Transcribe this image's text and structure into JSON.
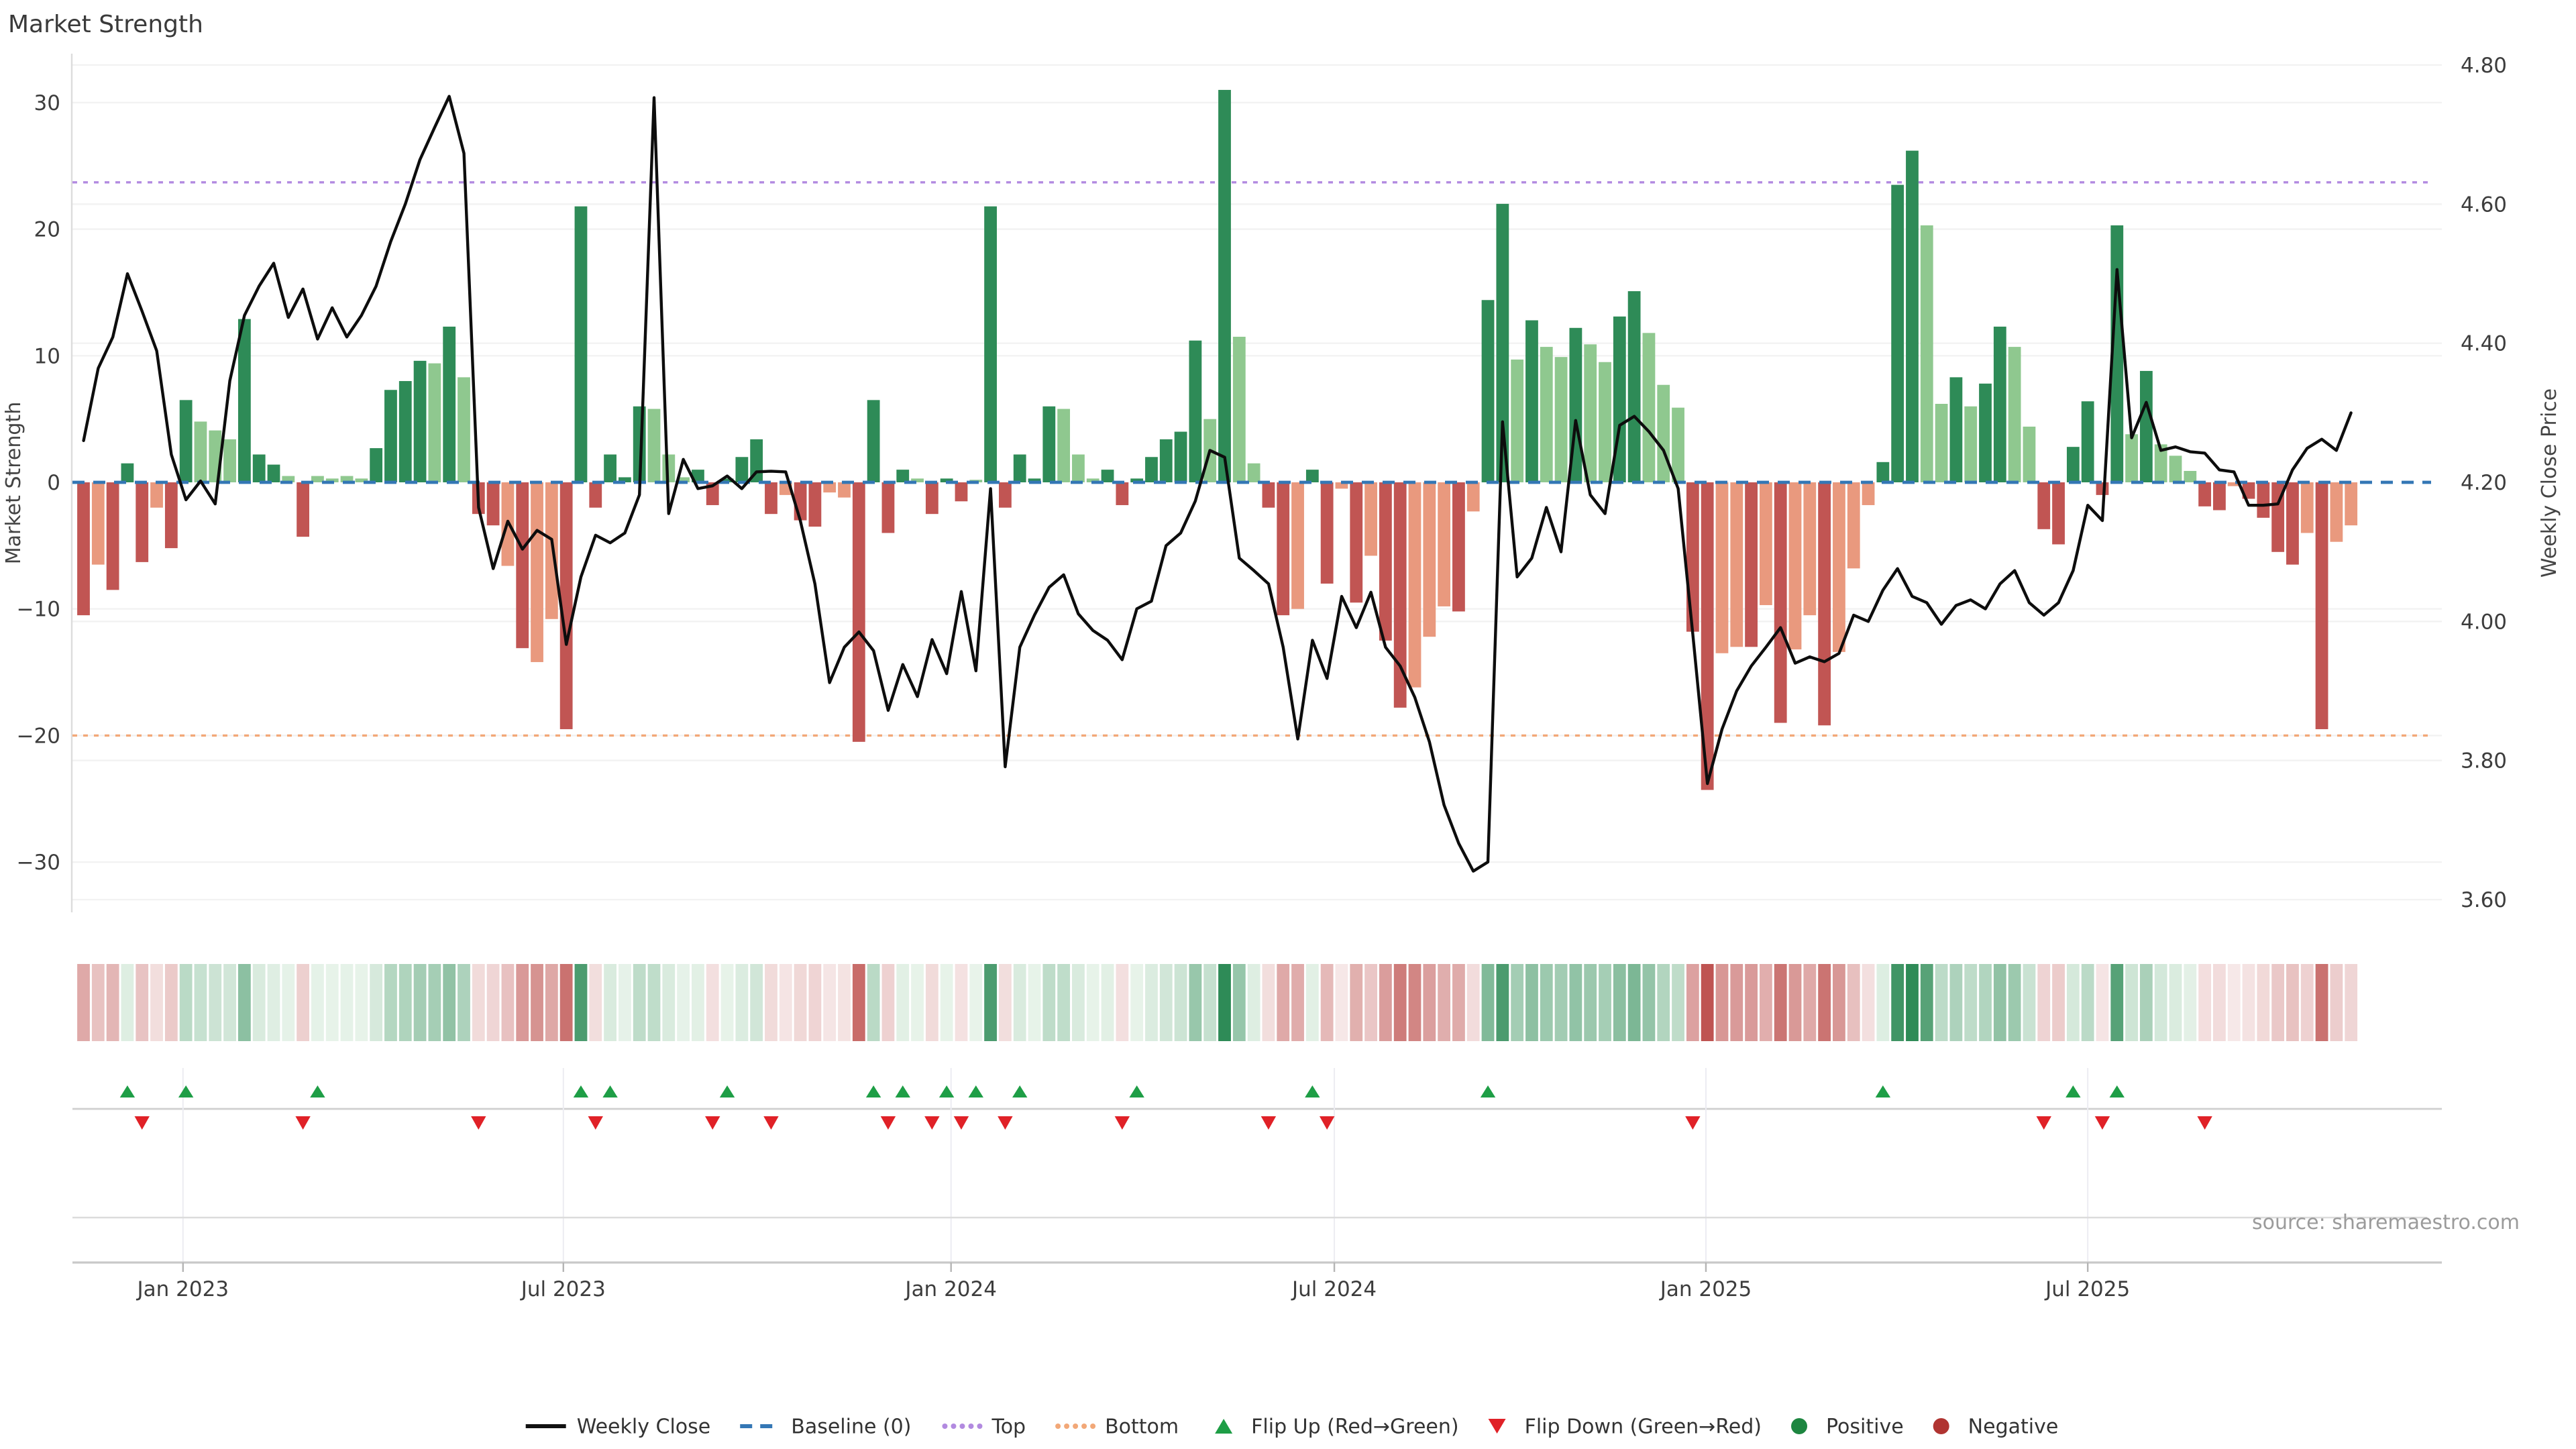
{
  "title": "Market Strength",
  "source": "source: sharemaestro.com",
  "left_axis": {
    "label": "Market Strength",
    "ticks": [
      "30",
      "20",
      "10",
      "0",
      "−10",
      "−20",
      "−30"
    ],
    "tick_values": [
      30,
      20,
      10,
      0,
      -10,
      -20,
      -30
    ]
  },
  "right_axis": {
    "label": "Weekly Close Price",
    "ticks": [
      "4.80",
      "4.60",
      "4.40",
      "4.20",
      "4.00",
      "3.80",
      "3.60"
    ],
    "tick_values": [
      4.8,
      4.6,
      4.4,
      4.2,
      4.0,
      3.8,
      3.6
    ]
  },
  "x_axis": {
    "ticks": [
      {
        "label": "Jan 2023",
        "index": 6.8
      },
      {
        "label": "Jul 2023",
        "index": 32.8
      },
      {
        "label": "Jan 2024",
        "index": 59.3
      },
      {
        "label": "Jul 2024",
        "index": 85.5
      },
      {
        "label": "Jan 2025",
        "index": 110.9
      },
      {
        "label": "Jul 2025",
        "index": 137.0
      }
    ]
  },
  "reference_lines": {
    "baseline": {
      "label": "Baseline (0)",
      "value": 0,
      "color": "#3477b5"
    },
    "top": {
      "label": "Top",
      "value": 23.7,
      "color": "#b28ae0"
    },
    "bottom": {
      "label": "Bottom",
      "value": -20,
      "color": "#f2a878"
    }
  },
  "colors": {
    "bar_dark_green": "#2e8b57",
    "bar_light_green": "#8fc88f",
    "bar_salmon": "#e9997e",
    "bar_dark_red": "#c15553",
    "line": "#0d0d0d",
    "flip_up": "#1e9e46",
    "flip_down": "#e02127",
    "positive_dot": "#1d8640",
    "negative_dot": "#b03431",
    "grid": "#f2f2f2",
    "spine": "#dcdcdc",
    "separator": "#cfcfcf",
    "axis_line": "#c9c9c9"
  },
  "legend": [
    {
      "icon": "line",
      "color": "#111111",
      "label": "Weekly Close"
    },
    {
      "icon": "dash",
      "color": "#3477b5",
      "label": "Baseline (0)"
    },
    {
      "icon": "dots",
      "color": "#b28ae0",
      "label": "Top"
    },
    {
      "icon": "dots",
      "color": "#f2a878",
      "label": "Bottom"
    },
    {
      "icon": "tri-up",
      "color": "#1e9e46",
      "label": "Flip Up (Red→Green)"
    },
    {
      "icon": "tri-down",
      "color": "#e02127",
      "label": "Flip Down (Green→Red)"
    },
    {
      "icon": "dot",
      "color": "#1d8640",
      "label": "Positive"
    },
    {
      "icon": "dot",
      "color": "#b03431",
      "label": "Negative"
    }
  ],
  "chart_data": {
    "type": "bar+line",
    "title": "Market Strength",
    "x_range_weeks": 156,
    "ylim_left": [
      -33.5,
      33.5
    ],
    "ylim_right": [
      3.565,
      4.835
    ],
    "grid": true,
    "legend_position": "bottom-center",
    "bars": {
      "name": "Market Strength",
      "axis": "left",
      "values": [
        -10.5,
        -6.5,
        -8.5,
        1.5,
        -6.3,
        -2,
        -5.2,
        6.5,
        4.8,
        4.1,
        3.4,
        12.9,
        2.2,
        1.4,
        0.5,
        -4.3,
        0.5,
        0.3,
        0.5,
        0.3,
        2.7,
        7.3,
        8,
        9.6,
        9.4,
        12.3,
        8.3,
        -2.5,
        -3.4,
        -6.6,
        -13.1,
        -14.2,
        -10.8,
        -19.5,
        21.8,
        -2,
        2.2,
        0.4,
        6,
        5.8,
        2.2,
        0.4,
        1,
        -1.8,
        0.3,
        2,
        3.4,
        -2.5,
        -1,
        -3,
        -3.5,
        -0.8,
        -1.2,
        -20.5,
        6.5,
        -4,
        1,
        0.3,
        -2.5,
        0.3,
        -1.5,
        0.2,
        21.8,
        -2,
        2.2,
        0.3,
        6,
        5.8,
        2.2,
        0.3,
        1,
        -1.8,
        0.3,
        2,
        3.4,
        4,
        11.2,
        5,
        31,
        11.5,
        1.5,
        -2,
        -10.5,
        -10,
        1,
        -8,
        -0.5,
        -9.5,
        -5.8,
        -12.5,
        -17.8,
        -16.2,
        -12.2,
        -9.8,
        -10.2,
        -2.3,
        14.4,
        22,
        9.7,
        12.8,
        10.7,
        9.9,
        12.2,
        10.9,
        9.5,
        13.1,
        15.1,
        11.8,
        7.7,
        5.9,
        -11.8,
        -24.3,
        -13.5,
        -13,
        -13,
        -9.7,
        -19,
        -13.2,
        -10.5,
        -19.2,
        -13.4,
        -6.8,
        -1.8,
        1.6,
        23.5,
        26.2,
        20.3,
        6.2,
        8.3,
        6,
        7.8,
        12.3,
        10.7,
        4.4,
        -3.7,
        -4.9,
        2.8,
        6.4,
        -1,
        20.3,
        3.8,
        8.8,
        3,
        2.1,
        0.9,
        -1.9,
        -2.2,
        -0.3,
        -1.3,
        -2.8,
        -5.5,
        -6.5,
        -4,
        -19.5,
        -4.7,
        -3.4
      ],
      "shades": [
        "dr",
        "sr",
        "dr",
        "dg",
        "dr",
        "sr",
        "dr",
        "dg",
        "lg",
        "lg",
        "lg",
        "dg",
        "dg",
        "dg",
        "lg",
        "dr",
        "lg",
        "lg",
        "lg",
        "lg",
        "dg",
        "dg",
        "dg",
        "dg",
        "lg",
        "dg",
        "lg",
        "dr",
        "dr",
        "sr",
        "dr",
        "sr",
        "sr",
        "dr",
        "dg",
        "dr",
        "dg",
        "dg",
        "dg",
        "lg",
        "lg",
        "lg",
        "dg",
        "dr",
        "dg",
        "dg",
        "dg",
        "dr",
        "sr",
        "dr",
        "dr",
        "sr",
        "sr",
        "dr",
        "dg",
        "dr",
        "dg",
        "lg",
        "dr",
        "dg",
        "dr",
        "lg",
        "dg",
        "dr",
        "dg",
        "dg",
        "dg",
        "lg",
        "lg",
        "lg",
        "dg",
        "dr",
        "dg",
        "dg",
        "dg",
        "dg",
        "dg",
        "lg",
        "dg",
        "lg",
        "lg",
        "dr",
        "dr",
        "sr",
        "dg",
        "dr",
        "sr",
        "dr",
        "sr",
        "dr",
        "dr",
        "sr",
        "sr",
        "sr",
        "dr",
        "sr",
        "dg",
        "dg",
        "lg",
        "dg",
        "lg",
        "lg",
        "dg",
        "lg",
        "lg",
        "dg",
        "dg",
        "lg",
        "lg",
        "lg",
        "dr",
        "dr",
        "sr",
        "sr",
        "dr",
        "sr",
        "dr",
        "sr",
        "sr",
        "dr",
        "sr",
        "sr",
        "sr",
        "dg",
        "dg",
        "dg",
        "lg",
        "lg",
        "dg",
        "lg",
        "dg",
        "dg",
        "lg",
        "lg",
        "dr",
        "dr",
        "dg",
        "dg",
        "dr",
        "dg",
        "lg",
        "dg",
        "lg",
        "lg",
        "lg",
        "dr",
        "dr",
        "sr",
        "dr",
        "dr",
        "dr",
        "dr",
        "sr",
        "dr",
        "sr",
        "sr"
      ]
    },
    "line": {
      "name": "Weekly Close",
      "axis": "right",
      "values": [
        4.26,
        4.364,
        4.409,
        4.5,
        4.446,
        4.389,
        4.24,
        4.175,
        4.202,
        4.169,
        4.346,
        4.44,
        4.482,
        4.515,
        4.437,
        4.478,
        4.406,
        4.451,
        4.409,
        4.44,
        4.482,
        4.546,
        4.6,
        4.664,
        4.71,
        4.755,
        4.673,
        4.164,
        4.076,
        4.144,
        4.104,
        4.131,
        4.118,
        3.967,
        4.064,
        4.124,
        4.113,
        4.127,
        4.182,
        4.753,
        4.155,
        4.233,
        4.191,
        4.195,
        4.209,
        4.191,
        4.215,
        4.216,
        4.215,
        4.145,
        4.054,
        3.912,
        3.963,
        3.985,
        3.958,
        3.872,
        3.938,
        3.892,
        3.974,
        3.925,
        4.043,
        3.929,
        4.191,
        3.791,
        3.963,
        4.009,
        4.049,
        4.067,
        4.011,
        3.987,
        3.973,
        3.945,
        4.018,
        4.029,
        4.109,
        4.127,
        4.173,
        4.246,
        4.236,
        4.091,
        4.073,
        4.054,
        3.963,
        3.831,
        3.973,
        3.918,
        4.036,
        3.991,
        4.042,
        3.963,
        3.936,
        3.891,
        3.827,
        3.736,
        3.681,
        3.641,
        3.654,
        4.287,
        4.064,
        4.091,
        4.164,
        4.1,
        4.289,
        4.182,
        4.155,
        4.282,
        4.295,
        4.273,
        4.246,
        4.191,
        3.982,
        3.767,
        3.845,
        3.9,
        3.936,
        3.963,
        3.991,
        3.94,
        3.949,
        3.942,
        3.954,
        4.009,
        4.0,
        4.045,
        4.076,
        4.036,
        4.027,
        3.996,
        4.023,
        4.031,
        4.018,
        4.054,
        4.073,
        4.027,
        4.009,
        4.027,
        4.073,
        4.167,
        4.145,
        4.506,
        4.264,
        4.315,
        4.246,
        4.251,
        4.244,
        4.242,
        4.218,
        4.215,
        4.167,
        4.167,
        4.169,
        4.218,
        4.249,
        4.262,
        4.246,
        4.3
      ]
    },
    "heatmap_strip": "derived from bar values: green shades positive, red shades negative, intensity ~ |value|/26",
    "flip_markers": "derived: up-triangle where bar sign changes negative->positive, down-triangle where positive->negative"
  }
}
